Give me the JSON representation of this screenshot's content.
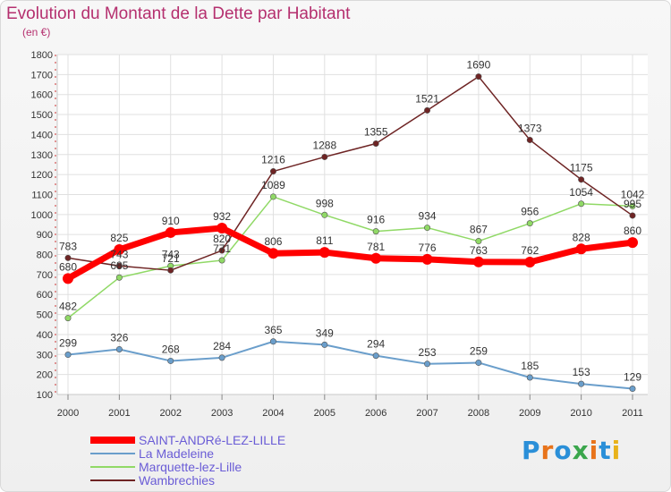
{
  "header": {
    "title": "Evolution du Montant de la Dette par Habitant",
    "subtitle": "(en €)"
  },
  "logo": {
    "text": "Proxiti",
    "colors": [
      "#2a8fd8",
      "#e8731a",
      "#2a8fd8",
      "#3aa64c",
      "#e8731a",
      "#2a8fd8",
      "#e8b21a"
    ]
  },
  "chart_data": {
    "type": "line",
    "x": [
      "2000",
      "2001",
      "2002",
      "2003",
      "2004",
      "2005",
      "2006",
      "2007",
      "2008",
      "2009",
      "2010",
      "2011"
    ],
    "ylim": [
      100,
      1800
    ],
    "yticks": [
      100,
      200,
      300,
      400,
      500,
      600,
      700,
      800,
      900,
      1000,
      1100,
      1200,
      1300,
      1400,
      1500,
      1600,
      1700,
      1800
    ],
    "grid": true,
    "legend_position": "bottom-left",
    "series": [
      {
        "name": "La Madeleine",
        "color": "#6a9ecb",
        "values": [
          299,
          326,
          268,
          284,
          365,
          349,
          294,
          253,
          259,
          185,
          153,
          129
        ]
      },
      {
        "name": "Marquette-lez-Lille",
        "color": "#90d966",
        "values": [
          482,
          685,
          743,
          771,
          1089,
          998,
          916,
          934,
          867,
          956,
          1054,
          1042
        ]
      },
      {
        "name": "Wambrechies",
        "color": "#6e2424",
        "values": [
          783,
          743,
          721,
          820,
          1216,
          1288,
          1355,
          1521,
          1690,
          1373,
          1175,
          995
        ]
      },
      {
        "name": "SAINT-ANDRé-LEZ-LILLE",
        "color": "#ff0000",
        "values": [
          680,
          825,
          910,
          932,
          806,
          811,
          781,
          776,
          763,
          762,
          828,
          860
        ]
      }
    ],
    "legend_order": [
      "SAINT-ANDRé-LEZ-LILLE",
      "La Madeleine",
      "Marquette-lez-Lille",
      "Wambrechies"
    ]
  }
}
